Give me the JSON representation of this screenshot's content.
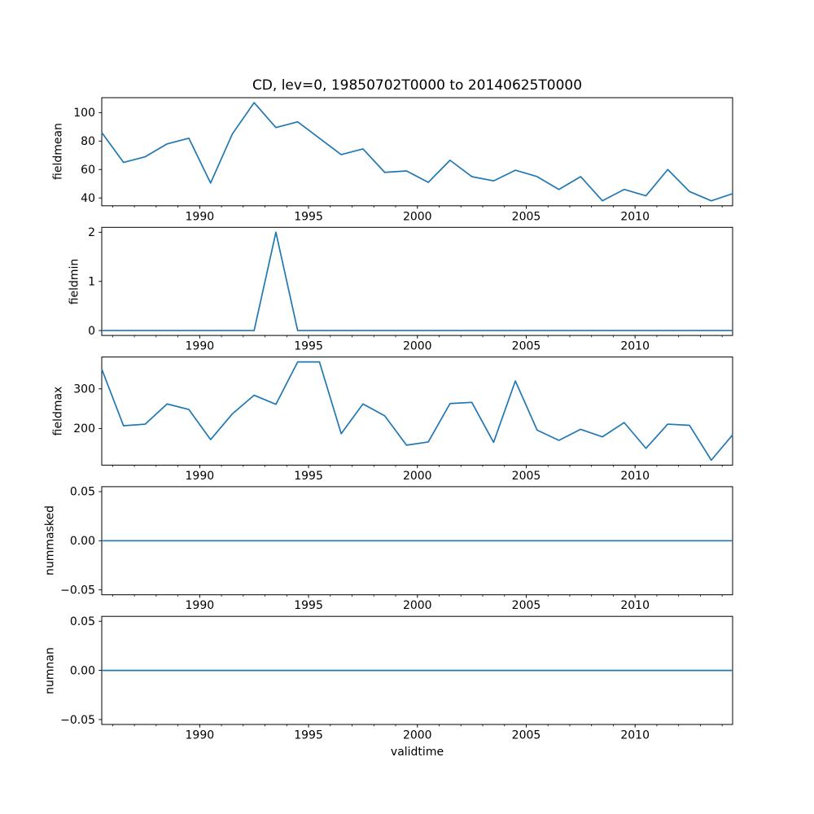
{
  "chart_data": {
    "type": "line",
    "title": "CD, lev=0, 19850702T0000 to 20140625T0000",
    "xlabel": "validtime",
    "line_color": "#1f77b4",
    "xlim": [
      1985.5,
      2014.48
    ],
    "x": [
      1985.5,
      1986.5,
      1987.5,
      1988.5,
      1989.5,
      1990.5,
      1991.5,
      1992.5,
      1993.5,
      1994.5,
      1995.5,
      1996.5,
      1997.5,
      1998.5,
      1999.5,
      2000.5,
      2001.5,
      2002.5,
      2003.5,
      2004.5,
      2005.5,
      2006.5,
      2007.5,
      2008.5,
      2009.5,
      2010.5,
      2011.5,
      2012.5,
      2013.5,
      2014.48
    ],
    "xticks": {
      "values": [
        1990,
        1995,
        2000,
        2005,
        2010
      ],
      "labels": [
        "1990",
        "1995",
        "2000",
        "2005",
        "2010"
      ]
    },
    "xticks_minor": [
      1986,
      1987,
      1988,
      1989,
      1990,
      1991,
      1992,
      1993,
      1994,
      1995,
      1996,
      1997,
      1998,
      1999,
      2000,
      2001,
      2002,
      2003,
      2004,
      2005,
      2006,
      2007,
      2008,
      2009,
      2010,
      2011,
      2012,
      2013,
      2014
    ],
    "subplots": [
      {
        "name": "fieldmean",
        "ylabel": "fieldmean",
        "ylim": [
          34.5,
          110.5
        ],
        "yticks": {
          "values": [
            40,
            60,
            80,
            100
          ],
          "labels": [
            "40",
            "60",
            "80",
            "100"
          ]
        },
        "values": [
          86,
          65,
          69,
          78,
          82,
          50.5,
          85,
          107,
          89.5,
          93.5,
          82,
          70.5,
          74.5,
          58,
          59,
          51,
          66.5,
          55,
          52,
          59.5,
          55,
          46,
          55,
          38,
          46,
          41.5,
          60,
          44.5,
          38,
          43
        ]
      },
      {
        "name": "fieldmin",
        "ylabel": "fieldmin",
        "ylim": [
          -0.1,
          2.1
        ],
        "yticks": {
          "values": [
            0,
            1,
            2
          ],
          "labels": [
            "0",
            "1",
            "2"
          ]
        },
        "values": [
          0,
          0,
          0,
          0,
          0,
          0,
          0,
          0,
          2,
          0,
          0,
          0,
          0,
          0,
          0,
          0,
          0,
          0,
          0,
          0,
          0,
          0,
          0,
          0,
          0,
          0,
          0,
          0,
          0,
          0
        ]
      },
      {
        "name": "fieldmax",
        "ylabel": "fieldmax",
        "ylim": [
          107.6,
          380.4
        ],
        "yticks": {
          "values": [
            200,
            300
          ],
          "labels": [
            "200",
            "300"
          ]
        },
        "values": [
          350,
          207,
          211,
          262,
          248,
          172,
          237,
          284,
          261,
          368,
          368,
          187,
          262,
          232,
          158,
          166,
          263,
          266,
          165,
          320,
          196,
          170,
          198,
          179,
          215,
          150,
          211,
          208,
          120,
          184
        ]
      },
      {
        "name": "nummasked",
        "ylabel": "nummasked",
        "ylim": [
          -0.055,
          0.055
        ],
        "yticks": {
          "values": [
            -0.05,
            0,
            0.05
          ],
          "labels": [
            "−0.05",
            "0.00",
            "0.05"
          ]
        },
        "values": [
          0,
          0,
          0,
          0,
          0,
          0,
          0,
          0,
          0,
          0,
          0,
          0,
          0,
          0,
          0,
          0,
          0,
          0,
          0,
          0,
          0,
          0,
          0,
          0,
          0,
          0,
          0,
          0,
          0,
          0
        ]
      },
      {
        "name": "numnan",
        "ylabel": "numnan",
        "ylim": [
          -0.055,
          0.055
        ],
        "yticks": {
          "values": [
            -0.05,
            0,
            0.05
          ],
          "labels": [
            "−0.05",
            "0.00",
            "0.05"
          ]
        },
        "values": [
          0,
          0,
          0,
          0,
          0,
          0,
          0,
          0,
          0,
          0,
          0,
          0,
          0,
          0,
          0,
          0,
          0,
          0,
          0,
          0,
          0,
          0,
          0,
          0,
          0,
          0,
          0,
          0,
          0,
          0
        ]
      }
    ]
  }
}
